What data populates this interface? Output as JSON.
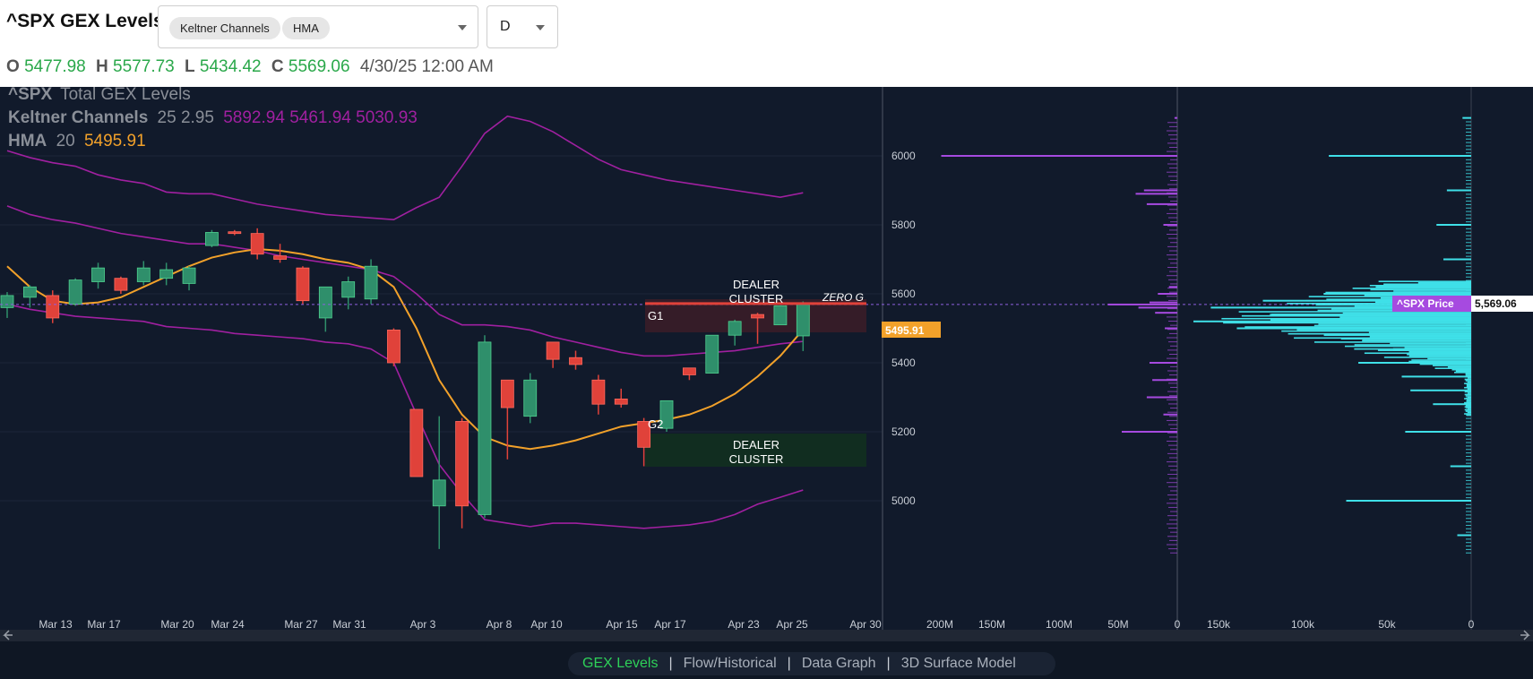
{
  "header": {
    "title": "^SPX GEX Levels",
    "indicators": [
      "Keltner Channels",
      "HMA"
    ],
    "timeframe": "D"
  },
  "ohlc": {
    "o_label": "O",
    "o": "5477.98",
    "h_label": "H",
    "h": "5577.73",
    "l_label": "L",
    "l": "5434.42",
    "c_label": "C",
    "c": "5569.06",
    "datetime": "4/30/25 12:00 AM"
  },
  "legend": {
    "symbol": "^SPX",
    "series_title": "Total GEX Levels",
    "keltner_name": "Keltner Channels",
    "keltner_params": "25 2.95",
    "keltner_values": "5892.94 5461.94 5030.93",
    "hma_name": "HMA",
    "hma_param": "20",
    "hma_value": "5495.91"
  },
  "annotations": {
    "dealer_cluster_upper": [
      "DEALER",
      "CLUSTER"
    ],
    "dealer_cluster_lower": [
      "DEALER",
      "CLUSTER"
    ],
    "zero_g": "ZERO G",
    "g1": "G1",
    "g2": "G2",
    "hma_tag": "5495.91",
    "price_tag_label": "^SPX Price",
    "price_tag_value": "5,569.06"
  },
  "colors": {
    "background": "#111a2b",
    "bull": "#2f8f6b",
    "bear": "#e0423a",
    "keltner": "#a020a0",
    "hma": "#f2a12a",
    "gex_bar": "#a64ae0",
    "vol_bar": "#3fe0e8",
    "dealer_upper": "#3a1d28",
    "dealer_lower": "#12301f"
  },
  "chart_data": {
    "type": "candlestick",
    "x_labels": [
      "Mar 13",
      "Mar 17",
      "Mar 20",
      "Mar 24",
      "Mar 27",
      "Mar 31",
      "Apr 3",
      "Apr 8",
      "Apr 10",
      "Apr 15",
      "Apr 17",
      "Apr 23",
      "Apr 25",
      "Apr 30"
    ],
    "y_ticks": [
      5000,
      5200,
      5400,
      5600,
      5800,
      6000
    ],
    "ylim": [
      4830,
      6200
    ],
    "candles": [
      {
        "o": 5560,
        "h": 5605,
        "l": 5530,
        "c": 5595
      },
      {
        "o": 5590,
        "h": 5625,
        "l": 5560,
        "c": 5620
      },
      {
        "o": 5595,
        "h": 5610,
        "l": 5515,
        "c": 5530
      },
      {
        "o": 5570,
        "h": 5645,
        "l": 5565,
        "c": 5640
      },
      {
        "o": 5635,
        "h": 5690,
        "l": 5615,
        "c": 5675
      },
      {
        "o": 5645,
        "h": 5650,
        "l": 5600,
        "c": 5610
      },
      {
        "o": 5635,
        "h": 5695,
        "l": 5625,
        "c": 5675
      },
      {
        "o": 5645,
        "h": 5690,
        "l": 5625,
        "c": 5670
      },
      {
        "o": 5630,
        "h": 5680,
        "l": 5610,
        "c": 5675
      },
      {
        "o": 5740,
        "h": 5785,
        "l": 5735,
        "c": 5778
      },
      {
        "o": 5780,
        "h": 5785,
        "l": 5770,
        "c": 5778
      },
      {
        "o": 5775,
        "h": 5790,
        "l": 5700,
        "c": 5715
      },
      {
        "o": 5710,
        "h": 5745,
        "l": 5690,
        "c": 5700
      },
      {
        "o": 5675,
        "h": 5680,
        "l": 5570,
        "c": 5580
      },
      {
        "o": 5530,
        "h": 5615,
        "l": 5490,
        "c": 5620
      },
      {
        "o": 5590,
        "h": 5650,
        "l": 5555,
        "c": 5635
      },
      {
        "o": 5585,
        "h": 5700,
        "l": 5570,
        "c": 5680
      },
      {
        "o": 5495,
        "h": 5500,
        "l": 5390,
        "c": 5400
      },
      {
        "o": 5265,
        "h": 5265,
        "l": 5070,
        "c": 5070
      },
      {
        "o": 4985,
        "h": 5245,
        "l": 4860,
        "c": 5060
      },
      {
        "o": 5230,
        "h": 5240,
        "l": 4920,
        "c": 4985
      },
      {
        "o": 4960,
        "h": 5480,
        "l": 4950,
        "c": 5460
      },
      {
        "o": 5350,
        "h": 5350,
        "l": 5120,
        "c": 5270
      },
      {
        "o": 5245,
        "h": 5370,
        "l": 5225,
        "c": 5350
      },
      {
        "o": 5460,
        "h": 5460,
        "l": 5385,
        "c": 5410
      },
      {
        "o": 5415,
        "h": 5435,
        "l": 5380,
        "c": 5395
      },
      {
        "o": 5350,
        "h": 5365,
        "l": 5250,
        "c": 5280
      },
      {
        "o": 5295,
        "h": 5325,
        "l": 5270,
        "c": 5280
      },
      {
        "o": 5230,
        "h": 5240,
        "l": 5100,
        "c": 5155
      },
      {
        "o": 5210,
        "h": 5290,
        "l": 5200,
        "c": 5290
      },
      {
        "o": 5385,
        "h": 5385,
        "l": 5350,
        "c": 5365
      },
      {
        "o": 5370,
        "h": 5480,
        "l": 5370,
        "c": 5480
      },
      {
        "o": 5480,
        "h": 5525,
        "l": 5450,
        "c": 5520
      },
      {
        "o": 5540,
        "h": 5545,
        "l": 5455,
        "c": 5530
      },
      {
        "o": 5510,
        "h": 5560,
        "l": 5510,
        "c": 5565
      },
      {
        "o": 5478,
        "h": 5578,
        "l": 5434,
        "c": 5569
      }
    ],
    "keltner_upper": [
      6015,
      5995,
      5980,
      5970,
      5945,
      5930,
      5920,
      5895,
      5890,
      5890,
      5875,
      5860,
      5850,
      5840,
      5830,
      5825,
      5820,
      5815,
      5850,
      5880,
      5970,
      6065,
      6115,
      6100,
      6070,
      6030,
      5990,
      5960,
      5945,
      5930,
      5920,
      5910,
      5900,
      5890,
      5880,
      5893
    ],
    "keltner_middle": [
      5855,
      5830,
      5815,
      5805,
      5790,
      5775,
      5765,
      5755,
      5745,
      5745,
      5735,
      5725,
      5710,
      5700,
      5690,
      5680,
      5670,
      5650,
      5600,
      5540,
      5510,
      5510,
      5505,
      5495,
      5475,
      5460,
      5445,
      5430,
      5420,
      5420,
      5425,
      5430,
      5435,
      5445,
      5455,
      5462
    ],
    "keltner_lower": [
      5570,
      5555,
      5545,
      5535,
      5530,
      5525,
      5520,
      5505,
      5500,
      5495,
      5485,
      5480,
      5475,
      5470,
      5460,
      5455,
      5440,
      5400,
      5250,
      5105,
      5020,
      4945,
      4935,
      4925,
      4935,
      4935,
      4930,
      4925,
      4920,
      4925,
      4930,
      4940,
      4960,
      4990,
      5010,
      5031
    ],
    "hma": [
      5680,
      5620,
      5580,
      5570,
      5575,
      5590,
      5620,
      5650,
      5680,
      5705,
      5720,
      5730,
      5725,
      5715,
      5700,
      5690,
      5670,
      5620,
      5500,
      5350,
      5250,
      5185,
      5160,
      5150,
      5160,
      5175,
      5195,
      5215,
      5225,
      5235,
      5250,
      5275,
      5310,
      5360,
      5420,
      5496
    ],
    "price_level": 5569.06,
    "hma_last": 5495.91,
    "gex_axis_labels": [
      "200M",
      "150M",
      "100M",
      "50M",
      "0"
    ],
    "vol_axis_labels": [
      "150k",
      "100k",
      "50k",
      "0"
    ],
    "gex_profile": [
      {
        "price": 6110,
        "value": 2
      },
      {
        "price": 6000,
        "value": 170
      },
      {
        "price": 5900,
        "value": 24
      },
      {
        "price": 5890,
        "value": 30
      },
      {
        "price": 5860,
        "value": 22
      },
      {
        "price": 5800,
        "value": 10
      },
      {
        "price": 5620,
        "value": 6
      },
      {
        "price": 5600,
        "value": 14
      },
      {
        "price": 5575,
        "value": 20
      },
      {
        "price": 5569,
        "value": 50
      },
      {
        "price": 5560,
        "value": 28
      },
      {
        "price": 5545,
        "value": 16
      },
      {
        "price": 5500,
        "value": 9
      },
      {
        "price": 5400,
        "value": 20
      },
      {
        "price": 5350,
        "value": 18
      },
      {
        "price": 5300,
        "value": 22
      },
      {
        "price": 5250,
        "value": 10
      },
      {
        "price": 5200,
        "value": 40
      }
    ],
    "vol_profile": [
      {
        "price": 6110,
        "value": 5
      },
      {
        "price": 6000,
        "value": 82
      },
      {
        "price": 5900,
        "value": 14
      },
      {
        "price": 5800,
        "value": 20
      },
      {
        "price": 5700,
        "value": 16
      },
      {
        "price": 5620,
        "value": 55
      },
      {
        "price": 5600,
        "value": 85
      },
      {
        "price": 5580,
        "value": 120
      },
      {
        "price": 5560,
        "value": 150
      },
      {
        "price": 5540,
        "value": 115
      },
      {
        "price": 5520,
        "value": 160
      },
      {
        "price": 5500,
        "value": 135
      },
      {
        "price": 5470,
        "value": 75
      },
      {
        "price": 5440,
        "value": 45
      },
      {
        "price": 5400,
        "value": 65
      },
      {
        "price": 5360,
        "value": 40
      },
      {
        "price": 5320,
        "value": 35
      },
      {
        "price": 5280,
        "value": 22
      },
      {
        "price": 5200,
        "value": 38
      },
      {
        "price": 5100,
        "value": 12
      },
      {
        "price": 5000,
        "value": 72
      },
      {
        "price": 4900,
        "value": 8
      }
    ]
  },
  "footer": {
    "tabs": [
      "GEX Levels",
      "Flow/Historical",
      "Data Graph",
      "3D Surface Model"
    ]
  }
}
